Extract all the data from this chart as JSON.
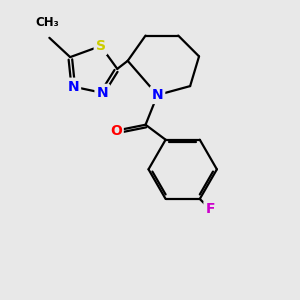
{
  "bg_color": "#e8e8e8",
  "bond_color": "#000000",
  "bond_width": 1.6,
  "dbo": 0.055,
  "atom_colors": {
    "S": "#cccc00",
    "N": "#0000ff",
    "O": "#ff0000",
    "F": "#cc00cc",
    "C": "#000000"
  },
  "afs": 10,
  "figsize": [
    3.0,
    3.0
  ],
  "dpi": 100
}
